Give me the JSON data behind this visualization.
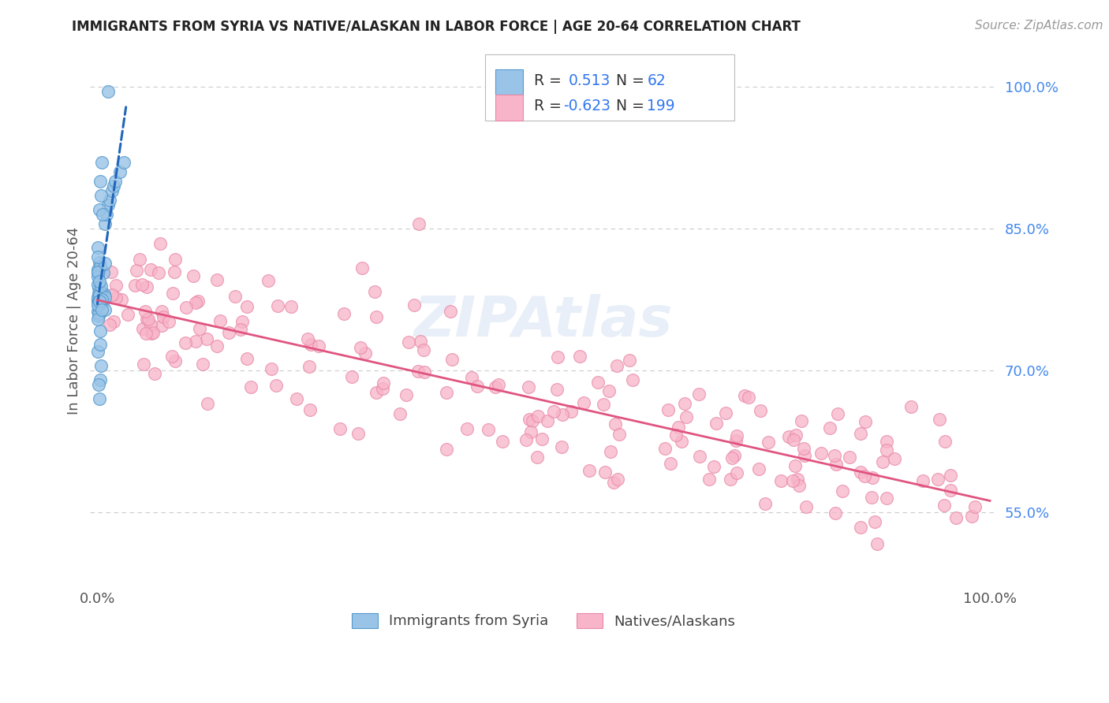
{
  "title": "IMMIGRANTS FROM SYRIA VS NATIVE/ALASKAN IN LABOR FORCE | AGE 20-64 CORRELATION CHART",
  "source": "Source: ZipAtlas.com",
  "ylabel": "In Labor Force | Age 20-64",
  "right_ytick_labels": [
    "55.0%",
    "70.0%",
    "85.0%",
    "100.0%"
  ],
  "right_ytick_values": [
    0.55,
    0.7,
    0.85,
    1.0
  ],
  "xtick_labels": [
    "0.0%",
    "100.0%"
  ],
  "blue_R": 0.513,
  "blue_N": 62,
  "pink_R": -0.623,
  "pink_N": 199,
  "legend_label_blue": "Immigrants from Syria",
  "legend_label_pink": "Natives/Alaskans",
  "blue_color": "#99c4e8",
  "blue_edge_color": "#5599cc",
  "blue_line_color": "#2266bb",
  "pink_color": "#f8b4c8",
  "pink_edge_color": "#e888a8",
  "pink_line_color": "#e05580",
  "bg_color": "#ffffff",
  "title_color": "#222222",
  "source_color": "#999999",
  "grid_color": "#cccccc",
  "right_label_color": "#4488ee",
  "legend_value_color": "#3377ee",
  "legend_text_color": "#333333",
  "watermark_color": "#ccddf0",
  "ylim_low": 0.47,
  "ylim_high": 1.035,
  "xlim_low": -0.008,
  "xlim_high": 1.008
}
